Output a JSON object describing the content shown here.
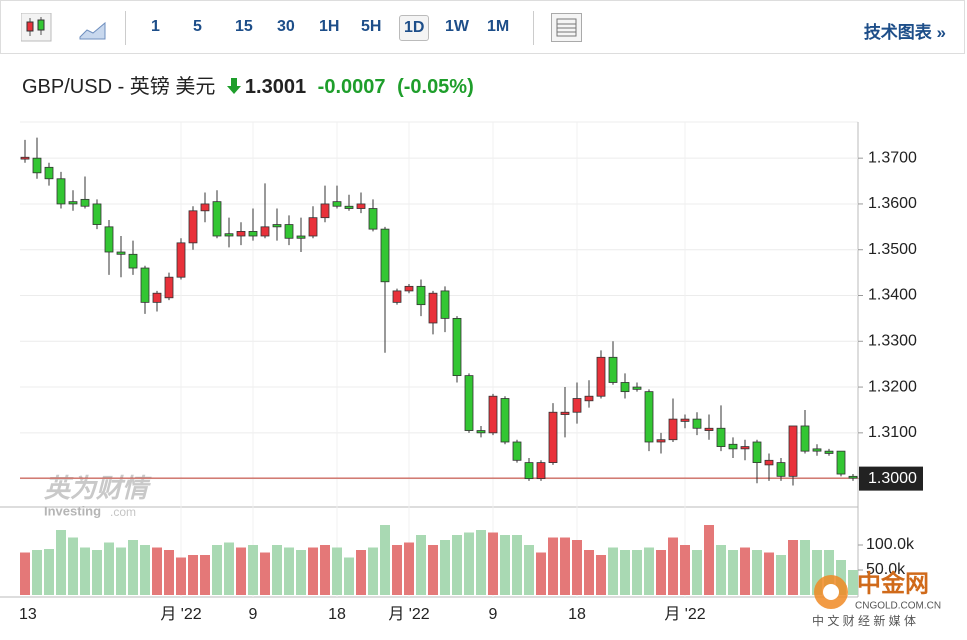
{
  "toolbar": {
    "intervals": [
      "1",
      "5",
      "15",
      "30",
      "1H",
      "5H",
      "1D",
      "1W",
      "1M"
    ],
    "selected": "1D",
    "link": "技术图表 »"
  },
  "header": {
    "title": "GBP/USD - 英镑 美元",
    "price": 1.3001,
    "change": -0.0007,
    "change_pct": "(-0.05%)"
  },
  "watermarks": {
    "brand": "英为财情",
    "site": "Investing",
    "site_suffix": ".com",
    "logo": "中金网",
    "logo_url": "CNGOLD.COM.CN",
    "logo_tagline": "中 文 财 经 新 媒 体"
  },
  "chart_data": {
    "type": "candlestick",
    "categories": [
      "13",
      null,
      null,
      null,
      null,
      null,
      null,
      null,
      null,
      null,
      null,
      null,
      null,
      "月 '22",
      null,
      null,
      null,
      null,
      null,
      "9",
      null,
      null,
      null,
      null,
      null,
      null,
      "18",
      null,
      null,
      null,
      null,
      null,
      "月 '22",
      null,
      null,
      null,
      null,
      null,
      null,
      "9",
      null,
      null,
      null,
      null,
      null,
      null,
      "18",
      null,
      null,
      null,
      null,
      null,
      null,
      null,
      null,
      "月 '22",
      null,
      null,
      null,
      null,
      null,
      null,
      null,
      null,
      null,
      null,
      null,
      null,
      null,
      null
    ],
    "open": [
      1.3698,
      1.37,
      1.368,
      1.3655,
      1.3605,
      1.361,
      1.36,
      1.355,
      1.3495,
      1.349,
      1.346,
      1.3385,
      1.3395,
      1.344,
      1.3515,
      1.3585,
      1.3605,
      1.3535,
      1.353,
      1.354,
      1.353,
      1.3555,
      1.3555,
      1.353,
      1.353,
      1.357,
      1.3605,
      1.3595,
      1.359,
      1.359,
      1.3545,
      1.3385,
      1.341,
      1.342,
      1.334,
      1.341,
      1.335,
      1.3225,
      1.3105,
      1.31,
      1.3175,
      1.308,
      1.3035,
      1.3,
      1.3035,
      1.314,
      1.3145,
      1.317,
      1.318,
      1.3265,
      1.321,
      1.32,
      1.319,
      1.308,
      1.3085,
      1.3125,
      1.313,
      1.3105,
      1.311,
      1.3075,
      1.3065,
      1.308,
      1.303,
      1.3035,
      1.3005,
      1.3115,
      1.3065,
      1.306,
      1.306,
      1.3005
    ],
    "high": [
      1.374,
      1.3745,
      1.369,
      1.367,
      1.363,
      1.366,
      1.361,
      1.3565,
      1.353,
      1.352,
      1.3465,
      1.341,
      1.345,
      1.3525,
      1.3595,
      1.3625,
      1.363,
      1.357,
      1.356,
      1.359,
      1.3645,
      1.359,
      1.3575,
      1.357,
      1.3595,
      1.364,
      1.364,
      1.362,
      1.3625,
      1.361,
      1.355,
      1.3415,
      1.3425,
      1.3435,
      1.341,
      1.342,
      1.3355,
      1.323,
      1.3115,
      1.3185,
      1.318,
      1.3085,
      1.3045,
      1.304,
      1.3165,
      1.32,
      1.321,
      1.3215,
      1.328,
      1.33,
      1.323,
      1.321,
      1.3195,
      1.31,
      1.3175,
      1.314,
      1.3145,
      1.314,
      1.316,
      1.309,
      1.3085,
      1.3085,
      1.3055,
      1.3045,
      1.3115,
      1.315,
      1.3075,
      1.3065,
      1.306,
      1.301
    ],
    "low": [
      1.369,
      1.3655,
      1.364,
      1.359,
      1.3585,
      1.359,
      1.3545,
      1.3445,
      1.344,
      1.3445,
      1.336,
      1.3365,
      1.339,
      1.3435,
      1.35,
      1.356,
      1.3525,
      1.3505,
      1.351,
      1.352,
      1.3525,
      1.352,
      1.351,
      1.3495,
      1.3525,
      1.356,
      1.359,
      1.3585,
      1.358,
      1.354,
      1.3275,
      1.338,
      1.3405,
      1.3355,
      1.3315,
      1.332,
      1.321,
      1.31,
      1.309,
      1.3095,
      1.3075,
      1.3035,
      1.2995,
      1.2995,
      1.303,
      1.309,
      1.312,
      1.3155,
      1.3175,
      1.3205,
      1.3175,
      1.319,
      1.306,
      1.3055,
      1.308,
      1.311,
      1.3095,
      1.3085,
      1.306,
      1.3045,
      1.304,
      1.299,
      1.2995,
      1.2995,
      1.2985,
      1.3055,
      1.305,
      1.305,
      1.3005,
      1.2995
    ],
    "close": [
      1.3702,
      1.3668,
      1.3655,
      1.36,
      1.36,
      1.3595,
      1.3555,
      1.3495,
      1.349,
      1.346,
      1.3385,
      1.3405,
      1.344,
      1.3515,
      1.3585,
      1.36,
      1.353,
      1.353,
      1.354,
      1.353,
      1.355,
      1.355,
      1.3525,
      1.3525,
      1.357,
      1.36,
      1.3595,
      1.359,
      1.36,
      1.3545,
      1.343,
      1.341,
      1.342,
      1.338,
      1.3405,
      1.335,
      1.3225,
      1.3105,
      1.31,
      1.318,
      1.308,
      1.304,
      1.3,
      1.3035,
      1.3145,
      1.3145,
      1.3175,
      1.318,
      1.3265,
      1.321,
      1.319,
      1.3195,
      1.308,
      1.3085,
      1.313,
      1.313,
      1.311,
      1.311,
      1.307,
      1.3065,
      1.307,
      1.3035,
      1.304,
      1.3005,
      1.3115,
      1.306,
      1.306,
      1.3055,
      1.301,
      1.3001
    ],
    "volume": [
      85000,
      90000,
      92000,
      130000,
      115000,
      95000,
      90000,
      105000,
      95000,
      110000,
      100000,
      95000,
      90000,
      75000,
      80000,
      80000,
      100000,
      105000,
      95000,
      100000,
      85000,
      100000,
      95000,
      90000,
      95000,
      100000,
      95000,
      75000,
      90000,
      95000,
      140000,
      100000,
      105000,
      120000,
      100000,
      110000,
      120000,
      125000,
      130000,
      125000,
      120000,
      120000,
      100000,
      85000,
      115000,
      115000,
      110000,
      90000,
      80000,
      95000,
      90000,
      90000,
      95000,
      90000,
      115000,
      100000,
      90000,
      140000,
      100000,
      90000,
      95000,
      90000,
      85000,
      80000,
      110000,
      110000,
      90000,
      90000,
      70000,
      50000
    ],
    "up_color": "#e8313a",
    "down_color": "#33c633",
    "up_volume_color": "#e47878",
    "down_volume_color": "#a9d9b3",
    "ylim": [
      1.2938,
      1.3779
    ],
    "yticks": [
      {
        "value": 1.3,
        "label": "1.3000"
      },
      {
        "value": 1.31,
        "label": "1.3100"
      },
      {
        "value": 1.32,
        "label": "1.3200"
      },
      {
        "value": 1.33,
        "label": "1.3300"
      },
      {
        "value": 1.34,
        "label": "1.3400"
      },
      {
        "value": 1.35,
        "label": "1.3500"
      },
      {
        "value": 1.36,
        "label": "1.3600"
      },
      {
        "value": 1.37,
        "label": "1.3700"
      }
    ],
    "volume_ylim": [
      0,
      146000
    ],
    "volume_yticks": [
      {
        "value": 50000,
        "label": "50.0k"
      },
      {
        "value": 100000,
        "label": "100.0k"
      }
    ],
    "grid": true
  }
}
